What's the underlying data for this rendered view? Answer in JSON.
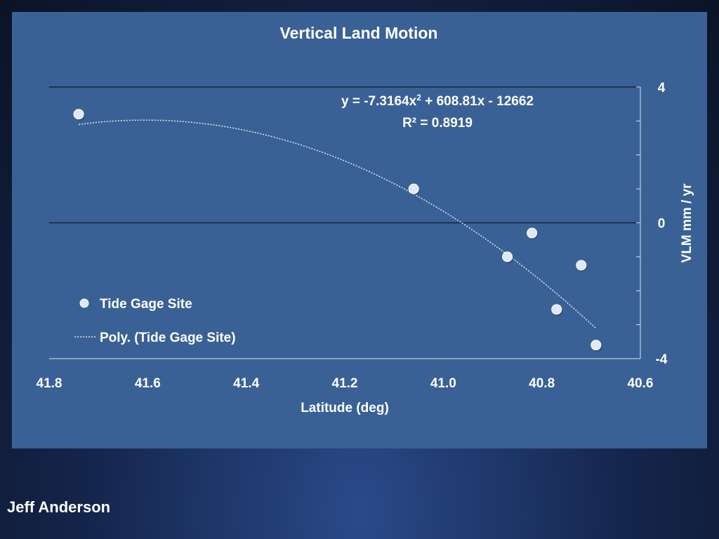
{
  "slide": {
    "author": "Jeff Anderson",
    "colors": {
      "panel": "#3a6195",
      "point": "#dfe8f5",
      "trendline": "#dfe8f5",
      "text": "#ffffff"
    }
  },
  "chart_data": {
    "type": "scatter",
    "title": "Vertical Land Motion",
    "xlabel": "Latitude (deg)",
    "ylabel": "VLM mm / yr",
    "xlim": [
      41.8,
      40.6
    ],
    "x_reversed": true,
    "ylim": [
      -4,
      4
    ],
    "x_ticks": [
      "41.8",
      "41.6",
      "41.4",
      "41.2",
      "41.0",
      "40.8",
      "40.6"
    ],
    "y_ticks": [
      "4",
      "0",
      "-4"
    ],
    "y_axis_side": "right",
    "gridlines_y": [
      4,
      0
    ],
    "legend_position": "left",
    "series": [
      {
        "name": "Tide Gage Site",
        "points": [
          {
            "x": 41.74,
            "y": 3.2
          },
          {
            "x": 41.06,
            "y": 1.0
          },
          {
            "x": 40.82,
            "y": -0.3
          },
          {
            "x": 40.87,
            "y": -1.0
          },
          {
            "x": 40.72,
            "y": -1.25
          },
          {
            "x": 40.77,
            "y": -2.55
          },
          {
            "x": 40.69,
            "y": -3.6
          }
        ]
      }
    ],
    "trendline": {
      "name": "Poly. (Tide Gage Site)",
      "type": "polynomial",
      "coefficients": [
        -7.3164,
        608.81,
        -12662
      ],
      "x_range": [
        41.74,
        40.69
      ],
      "equation": {
        "y_prefix": "y = -7.3164x",
        "exponent": "2",
        "rest": " + 608.81x - 12662"
      },
      "r_squared": "R² = 0.8919"
    }
  }
}
